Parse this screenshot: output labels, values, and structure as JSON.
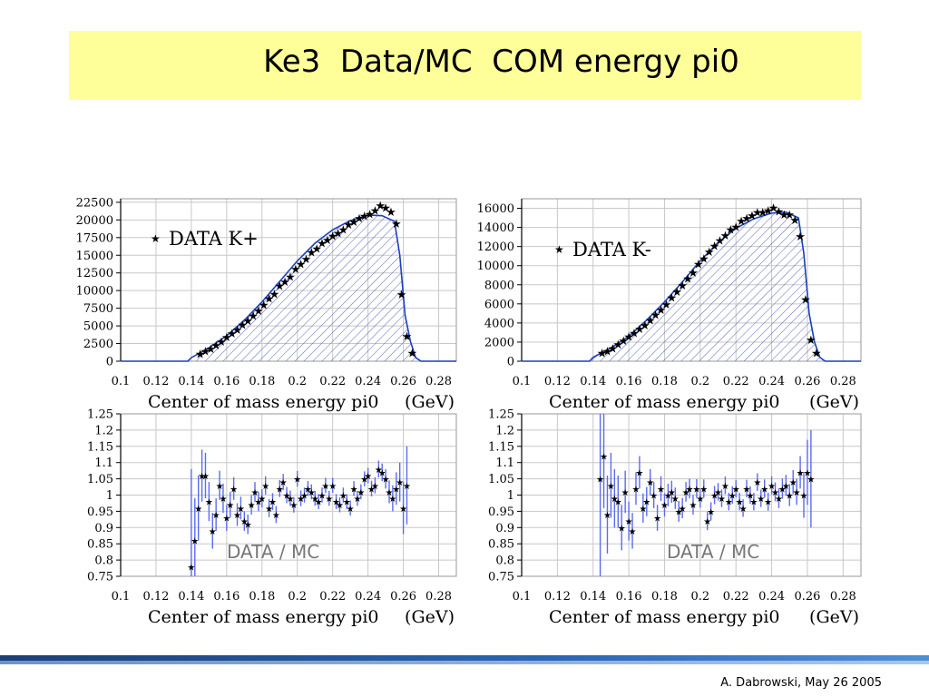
{
  "slide": {
    "title": "Ke3  Data/MC  COM energy pi0",
    "footer": "A. Dabrowski, May 26 2005"
  },
  "colors": {
    "title_band": "#ffff99",
    "mc_line": "#1a3fc0",
    "hatch": "#5566bb",
    "errbar": "#5a6cf0",
    "grid": "#c8c8c8"
  },
  "chart_data": [
    {
      "id": "kplus-dist",
      "type": "area",
      "legend": "DATA  K+",
      "xlabel": "Center of mass energy pi0",
      "xunit": "(GeV)",
      "xlim": [
        0.1,
        0.29
      ],
      "ylim": [
        0,
        23000
      ],
      "xticks": [
        "0.1",
        "0.12",
        "0.14",
        "0.16",
        "0.18",
        "0.2",
        "0.22",
        "0.24",
        "0.26",
        "0.28"
      ],
      "yticks": [
        "0",
        "2500",
        "5000",
        "7500",
        "10000",
        "12500",
        "15000",
        "17500",
        "20000",
        "22500"
      ],
      "grid": true,
      "series": [
        {
          "name": "MC",
          "style": "hatched-histogram",
          "x": [
            0.138,
            0.14,
            0.145,
            0.15,
            0.16,
            0.17,
            0.18,
            0.19,
            0.2,
            0.21,
            0.22,
            0.23,
            0.24,
            0.248,
            0.255,
            0.258,
            0.261,
            0.264,
            0.267,
            0.27
          ],
          "y": [
            0,
            500,
            1200,
            1900,
            3600,
            5800,
            8400,
            11300,
            14200,
            16700,
            18600,
            19900,
            20700,
            20600,
            19800,
            15000,
            6500,
            2800,
            500,
            0
          ]
        },
        {
          "name": "DATA  K+",
          "style": "stars",
          "x": [
            0.145,
            0.148,
            0.151,
            0.154,
            0.157,
            0.16,
            0.163,
            0.166,
            0.169,
            0.172,
            0.175,
            0.178,
            0.181,
            0.184,
            0.187,
            0.19,
            0.193,
            0.196,
            0.199,
            0.202,
            0.205,
            0.208,
            0.211,
            0.214,
            0.217,
            0.22,
            0.223,
            0.226,
            0.229,
            0.232,
            0.235,
            0.238,
            0.241,
            0.244,
            0.247,
            0.25,
            0.253,
            0.256,
            0.259,
            0.262,
            0.265
          ],
          "y": [
            1100,
            1500,
            1800,
            2300,
            2800,
            3500,
            4000,
            4500,
            5200,
            5800,
            6500,
            7200,
            8000,
            8900,
            9600,
            10700,
            11300,
            12000,
            13100,
            13800,
            14500,
            15500,
            16000,
            16800,
            17200,
            17800,
            18200,
            18700,
            19400,
            19800,
            20300,
            20600,
            20900,
            21400,
            22100,
            21800,
            21200,
            19500,
            9500,
            3600,
            1200
          ]
        }
      ]
    },
    {
      "id": "kminus-dist",
      "type": "area",
      "legend": "DATA  K-",
      "xlabel": "Center of mass energy pi0",
      "xunit": "(GeV)",
      "xlim": [
        0.1,
        0.29
      ],
      "ylim": [
        0,
        17000
      ],
      "xticks": [
        "0.1",
        "0.12",
        "0.14",
        "0.16",
        "0.18",
        "0.2",
        "0.22",
        "0.24",
        "0.26",
        "0.28"
      ],
      "yticks": [
        "0",
        "2000",
        "4000",
        "6000",
        "8000",
        "10000",
        "12000",
        "14000",
        "16000"
      ],
      "grid": true,
      "series": [
        {
          "name": "MC",
          "style": "hatched-histogram",
          "x": [
            0.138,
            0.14,
            0.145,
            0.15,
            0.16,
            0.17,
            0.18,
            0.19,
            0.2,
            0.21,
            0.22,
            0.23,
            0.24,
            0.248,
            0.255,
            0.258,
            0.261,
            0.264,
            0.267,
            0.27
          ],
          "y": [
            0,
            400,
            900,
            1400,
            2600,
            4300,
            6200,
            8300,
            10500,
            12400,
            13900,
            14900,
            15500,
            15600,
            15000,
            11300,
            5000,
            2000,
            400,
            0
          ]
        },
        {
          "name": "DATA  K-",
          "style": "stars",
          "x": [
            0.145,
            0.148,
            0.151,
            0.154,
            0.157,
            0.16,
            0.163,
            0.166,
            0.169,
            0.172,
            0.175,
            0.178,
            0.181,
            0.184,
            0.187,
            0.19,
            0.193,
            0.196,
            0.199,
            0.202,
            0.205,
            0.208,
            0.211,
            0.214,
            0.217,
            0.22,
            0.223,
            0.226,
            0.229,
            0.232,
            0.235,
            0.238,
            0.241,
            0.244,
            0.247,
            0.25,
            0.253,
            0.256,
            0.259,
            0.262,
            0.265
          ],
          "y": [
            900,
            1100,
            1400,
            1800,
            2200,
            2600,
            3000,
            3400,
            3800,
            4300,
            4900,
            5400,
            6000,
            6700,
            7300,
            8000,
            8700,
            9300,
            10200,
            10800,
            11500,
            12100,
            12700,
            13200,
            13800,
            14100,
            14700,
            15000,
            15300,
            15600,
            15600,
            15800,
            16100,
            15700,
            15400,
            15400,
            14800,
            13100,
            6500,
            2300,
            900
          ]
        }
      ]
    },
    {
      "id": "kplus-ratio",
      "type": "scatter",
      "annotation": "DATA / MC",
      "xlabel": "Center of mass energy pi0",
      "xunit": "(GeV)",
      "xlim": [
        0.1,
        0.29
      ],
      "ylim": [
        0.75,
        1.25
      ],
      "xticks": [
        "0.1",
        "0.12",
        "0.14",
        "0.16",
        "0.18",
        "0.2",
        "0.22",
        "0.24",
        "0.26",
        "0.28"
      ],
      "yticks": [
        "0.75",
        "0.8",
        "0.85",
        "0.9",
        "0.95",
        "1",
        "1.05",
        "1.1",
        "1.15",
        "1.2",
        "1.25"
      ],
      "grid": true,
      "series": [
        {
          "name": "DATA / MC",
          "x": [
            0.14,
            0.142,
            0.144,
            0.146,
            0.148,
            0.15,
            0.152,
            0.154,
            0.156,
            0.158,
            0.16,
            0.162,
            0.164,
            0.166,
            0.168,
            0.17,
            0.172,
            0.174,
            0.176,
            0.178,
            0.18,
            0.182,
            0.184,
            0.186,
            0.188,
            0.19,
            0.192,
            0.194,
            0.196,
            0.198,
            0.2,
            0.202,
            0.204,
            0.206,
            0.208,
            0.21,
            0.212,
            0.214,
            0.216,
            0.218,
            0.22,
            0.222,
            0.224,
            0.226,
            0.228,
            0.23,
            0.232,
            0.234,
            0.236,
            0.238,
            0.24,
            0.242,
            0.244,
            0.246,
            0.248,
            0.25,
            0.252,
            0.254,
            0.256,
            0.258,
            0.26,
            0.262
          ],
          "y": [
            0.78,
            0.86,
            0.96,
            1.06,
            1.06,
            0.98,
            0.89,
            0.94,
            1.03,
            0.99,
            0.93,
            0.97,
            1.02,
            0.94,
            0.96,
            0.92,
            0.91,
            0.97,
            1.01,
            0.98,
            0.99,
            1.03,
            0.96,
            0.98,
            0.94,
            1.02,
            1.04,
            1.0,
            0.99,
            0.97,
            1.05,
            0.99,
            1.0,
            1.02,
            1.01,
            0.99,
            0.98,
            1.0,
            1.03,
            0.99,
            1.03,
            0.98,
            0.97,
            1.0,
            0.98,
            0.96,
            1.02,
            0.99,
            1.01,
            1.05,
            1.06,
            1.02,
            1.03,
            1.08,
            1.07,
            1.05,
            1.01,
            0.99,
            1.02,
            1.04,
            0.96,
            1.03
          ],
          "yerr": [
            0.3,
            0.13,
            0.1,
            0.08,
            0.07,
            0.06,
            0.055,
            0.05,
            0.045,
            0.045,
            0.04,
            0.04,
            0.035,
            0.035,
            0.035,
            0.03,
            0.03,
            0.03,
            0.03,
            0.03,
            0.028,
            0.028,
            0.028,
            0.026,
            0.026,
            0.026,
            0.025,
            0.025,
            0.024,
            0.024,
            0.024,
            0.024,
            0.023,
            0.023,
            0.023,
            0.023,
            0.023,
            0.023,
            0.023,
            0.023,
            0.023,
            0.023,
            0.023,
            0.023,
            0.023,
            0.023,
            0.023,
            0.023,
            0.023,
            0.023,
            0.024,
            0.024,
            0.025,
            0.026,
            0.027,
            0.03,
            0.035,
            0.04,
            0.05,
            0.06,
            0.08,
            0.12
          ]
        }
      ]
    },
    {
      "id": "kminus-ratio",
      "type": "scatter",
      "annotation": "DATA / MC",
      "xlabel": "Center of mass energy pi0",
      "xunit": "(GeV)",
      "xlim": [
        0.1,
        0.29
      ],
      "ylim": [
        0.75,
        1.25
      ],
      "xticks": [
        "0.1",
        "0.12",
        "0.14",
        "0.16",
        "0.18",
        "0.2",
        "0.22",
        "0.24",
        "0.26",
        "0.28"
      ],
      "yticks": [
        "0.75",
        "0.8",
        "0.85",
        "0.9",
        "0.95",
        "1",
        "1.05",
        "1.1",
        "1.15",
        "1.2",
        "1.25"
      ],
      "grid": true,
      "series": [
        {
          "name": "DATA / MC",
          "x": [
            0.144,
            0.146,
            0.148,
            0.15,
            0.152,
            0.154,
            0.156,
            0.158,
            0.16,
            0.162,
            0.164,
            0.166,
            0.168,
            0.17,
            0.172,
            0.174,
            0.176,
            0.178,
            0.18,
            0.182,
            0.184,
            0.186,
            0.188,
            0.19,
            0.192,
            0.194,
            0.196,
            0.198,
            0.2,
            0.202,
            0.204,
            0.206,
            0.208,
            0.21,
            0.212,
            0.214,
            0.216,
            0.218,
            0.22,
            0.222,
            0.224,
            0.226,
            0.228,
            0.23,
            0.232,
            0.234,
            0.236,
            0.238,
            0.24,
            0.242,
            0.244,
            0.246,
            0.248,
            0.25,
            0.252,
            0.254,
            0.256,
            0.258,
            0.26,
            0.262
          ],
          "y": [
            1.05,
            1.12,
            0.94,
            1.03,
            0.99,
            0.98,
            0.9,
            1.01,
            0.92,
            0.89,
            1.02,
            1.07,
            0.96,
            0.98,
            1.04,
            1.0,
            0.93,
            1.02,
            0.97,
            1.0,
            1.01,
            0.99,
            0.95,
            0.96,
            1.01,
            1.02,
            0.97,
            1.02,
            0.99,
            1.02,
            0.92,
            0.95,
            1.0,
            1.01,
            0.99,
            1.03,
            0.98,
            1.0,
            1.02,
            0.98,
            0.96,
            1.02,
            1.0,
            0.98,
            1.04,
            0.99,
            1.02,
            0.98,
            1.03,
            1.01,
            0.99,
            1.02,
            1.03,
            1.0,
            1.04,
            1.01,
            1.07,
            1.0,
            1.07,
            1.05
          ],
          "yerr": [
            0.3,
            0.16,
            0.12,
            0.1,
            0.09,
            0.08,
            0.07,
            0.065,
            0.06,
            0.055,
            0.05,
            0.05,
            0.045,
            0.045,
            0.04,
            0.04,
            0.04,
            0.038,
            0.036,
            0.035,
            0.034,
            0.033,
            0.032,
            0.031,
            0.03,
            0.03,
            0.03,
            0.029,
            0.029,
            0.028,
            0.028,
            0.028,
            0.028,
            0.027,
            0.027,
            0.027,
            0.027,
            0.027,
            0.027,
            0.027,
            0.027,
            0.027,
            0.027,
            0.027,
            0.027,
            0.027,
            0.028,
            0.028,
            0.028,
            0.029,
            0.03,
            0.031,
            0.032,
            0.034,
            0.037,
            0.04,
            0.05,
            0.07,
            0.1,
            0.15
          ]
        }
      ]
    }
  ]
}
